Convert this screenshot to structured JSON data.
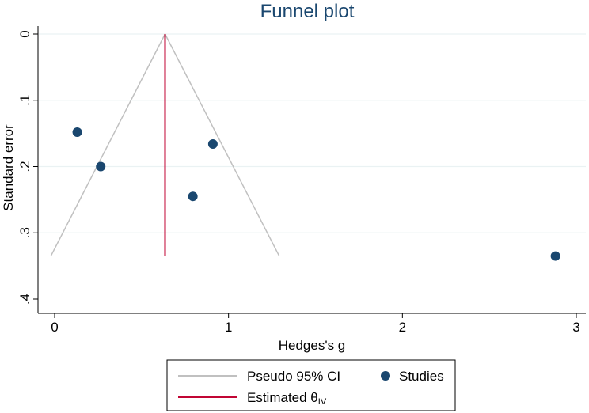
{
  "chart_data": {
    "type": "scatter",
    "title": "Funnel plot",
    "xlabel": "Hedges's g",
    "ylabel": "Standard error",
    "xlim": [
      -0.1,
      3.05
    ],
    "ylim": [
      0,
      0.4
    ],
    "y_reversed": true,
    "x_ticks": [
      "0",
      "1",
      "2",
      "3"
    ],
    "x_tick_values": [
      0,
      1,
      2,
      3
    ],
    "y_ticks": [
      "0",
      ".1",
      ".2",
      ".3",
      ".4"
    ],
    "y_tick_values": [
      0,
      0.1,
      0.2,
      0.3,
      0.4
    ],
    "grid": "horizontal",
    "estimate": 0.635,
    "se_max": 0.335,
    "series": [
      {
        "name": "Studies",
        "points": [
          {
            "x": 0.13,
            "y": 0.148
          },
          {
            "x": 0.265,
            "y": 0.2
          },
          {
            "x": 0.91,
            "y": 0.166
          },
          {
            "x": 0.795,
            "y": 0.245
          },
          {
            "x": 2.88,
            "y": 0.335
          }
        ]
      }
    ],
    "lines": [
      {
        "name": "Pseudo 95% CI",
        "color": "#c0c0c0"
      },
      {
        "name": "Estimated θ",
        "subscript": "IV",
        "color": "#c10534"
      }
    ],
    "legend_position": "bottom",
    "colors": {
      "title": "#1a476f",
      "points": "#1a476f",
      "ci": "#c0c0c0",
      "estimate": "#c10534",
      "grid": "#eaf2f3"
    }
  }
}
